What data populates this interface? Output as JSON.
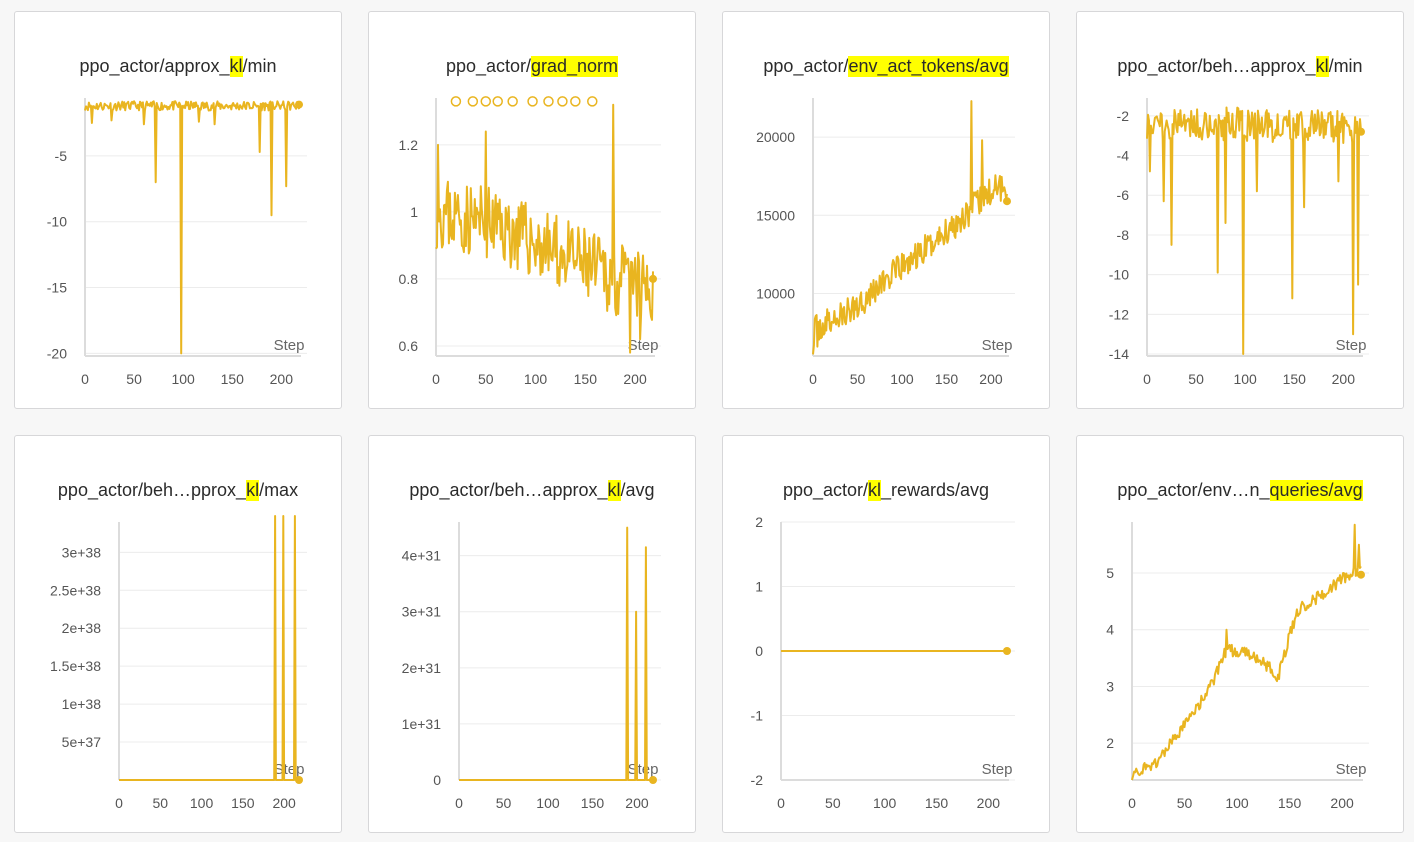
{
  "colors": {
    "series": "#e9b520",
    "grid": "#ececec",
    "axis": "#dcdcdc"
  },
  "x_axis_label": "Step",
  "chart_data": [
    {
      "type": "line",
      "title_parts": [
        {
          "text": "ppo_actor/approx_"
        },
        {
          "text": "kl",
          "hl": true
        },
        {
          "text": "/min"
        }
      ],
      "ytick_labels": [
        "-20",
        "-15",
        "-10",
        "-5"
      ],
      "yticks": [
        -20,
        -15,
        -10,
        -5
      ],
      "ylim": [
        -20.2,
        -0.6
      ],
      "xticks": [
        0,
        50,
        100,
        150,
        200
      ],
      "xlim": [
        0,
        218
      ],
      "gen": {
        "seed": 11,
        "base": [
          [
            0,
            -1.2
          ],
          [
            218,
            -1.2
          ]
        ],
        "noise": 0.7,
        "spikes": [
          [
            7,
            -2.5
          ],
          [
            27,
            -2.3
          ],
          [
            60,
            -2.6
          ],
          [
            72,
            -7
          ],
          [
            98,
            -20
          ],
          [
            116,
            -2.4
          ],
          [
            132,
            -2.6
          ],
          [
            178,
            -4.7
          ],
          [
            190,
            -9.5
          ],
          [
            205,
            -7.3
          ]
        ]
      },
      "last": [
        218,
        -1.1
      ]
    },
    {
      "type": "line",
      "title_parts": [
        {
          "text": "ppo_actor/"
        },
        {
          "text": "grad_norm",
          "hl": true
        }
      ],
      "ytick_labels": [
        "0.6",
        "0.8",
        "1",
        "1.2"
      ],
      "yticks": [
        0.6,
        0.8,
        1,
        1.2
      ],
      "ylim": [
        0.57,
        1.34
      ],
      "xticks": [
        0,
        50,
        100,
        150,
        200
      ],
      "xlim": [
        0,
        218
      ],
      "gen": {
        "seed": 23,
        "base": [
          [
            0,
            1.0
          ],
          [
            60,
            0.96
          ],
          [
            120,
            0.88
          ],
          [
            180,
            0.8
          ],
          [
            218,
            0.76
          ]
        ],
        "noise": 0.22,
        "spikes": [
          [
            2,
            1.2
          ],
          [
            50,
            1.24
          ],
          [
            178,
            1.32
          ],
          [
            195,
            0.58
          ],
          [
            205,
            0.62
          ]
        ]
      },
      "outliers_x": [
        20,
        37,
        50,
        62,
        77,
        97,
        113,
        127,
        140,
        157
      ],
      "outliers_y": 1.33,
      "last": [
        218,
        0.8
      ]
    },
    {
      "type": "line",
      "title_parts": [
        {
          "text": "ppo_actor/"
        },
        {
          "text": "env_act_tokens/avg",
          "hl": true
        }
      ],
      "ytick_labels": [
        "10000",
        "15000",
        "20000"
      ],
      "yticks": [
        10000,
        15000,
        20000
      ],
      "ylim": [
        6000,
        22500
      ],
      "xticks": [
        0,
        50,
        100,
        150,
        200
      ],
      "xlim": [
        0,
        218
      ],
      "gen": {
        "seed": 37,
        "base": [
          [
            0,
            7600
          ],
          [
            40,
            8800
          ],
          [
            80,
            10800
          ],
          [
            120,
            12500
          ],
          [
            160,
            14500
          ],
          [
            200,
            16500
          ],
          [
            218,
            17000
          ]
        ],
        "noise": 1900,
        "spikes": [
          [
            0,
            6100
          ],
          [
            5,
            6600
          ],
          [
            178,
            22300
          ],
          [
            190,
            19800
          ]
        ]
      },
      "last": [
        218,
        15900
      ]
    },
    {
      "type": "line",
      "title_parts": [
        {
          "text": "ppo_actor/beh…approx_"
        },
        {
          "text": "kl",
          "hl": true
        },
        {
          "text": "/min"
        }
      ],
      "ytick_labels": [
        "-14",
        "-12",
        "-10",
        "-8",
        "-6",
        "-4",
        "-2"
      ],
      "yticks": [
        -14,
        -12,
        -10,
        -8,
        -6,
        -4,
        -2
      ],
      "ylim": [
        -14.1,
        -1.1
      ],
      "xticks": [
        0,
        50,
        100,
        150,
        200
      ],
      "xlim": [
        0,
        218
      ],
      "gen": {
        "seed": 51,
        "base": [
          [
            0,
            -2.3
          ],
          [
            218,
            -2.6
          ]
        ],
        "noise": 1.7,
        "spikes": [
          [
            3,
            -4.8
          ],
          [
            17,
            -6.3
          ],
          [
            25,
            -8.5
          ],
          [
            72,
            -9.9
          ],
          [
            80,
            -7.4
          ],
          [
            98,
            -14
          ],
          [
            112,
            -5.8
          ],
          [
            148,
            -11.2
          ],
          [
            160,
            -6.6
          ],
          [
            195,
            -5.3
          ],
          [
            210,
            -13
          ],
          [
            215,
            -10.5
          ]
        ]
      },
      "last": [
        218,
        -2.8
      ]
    },
    {
      "type": "line",
      "title_parts": [
        {
          "text": "ppo_actor/beh…pprox_"
        },
        {
          "text": "kl",
          "hl": true
        },
        {
          "text": "/max"
        }
      ],
      "ytick_labels": [
        "5e+37",
        "1e+38",
        "1.5e+38",
        "2e+38",
        "2.5e+38",
        "3e+38"
      ],
      "yticks": [
        5e+37,
        1e+38,
        1.5e+38,
        2e+38,
        2.5e+38,
        3e+38
      ],
      "ylim": [
        0,
        3.4e+38
      ],
      "xticks": [
        0,
        50,
        100,
        150,
        200
      ],
      "xlim": [
        0,
        218
      ],
      "gen": {
        "seed": 1,
        "base": [
          [
            0,
            0
          ],
          [
            218,
            0
          ]
        ],
        "noise": 0,
        "spikes": [
          [
            189,
            4e+38
          ],
          [
            199,
            4e+38
          ],
          [
            213,
            4e+38
          ]
        ]
      },
      "last": [
        218,
        0
      ]
    },
    {
      "type": "line",
      "title_parts": [
        {
          "text": "ppo_actor/beh…approx_"
        },
        {
          "text": "kl",
          "hl": true
        },
        {
          "text": "/avg"
        }
      ],
      "ytick_labels": [
        "0",
        "1e+31",
        "2e+31",
        "3e+31",
        "4e+31"
      ],
      "yticks": [
        0,
        1e+31,
        2e+31,
        3e+31,
        4e+31
      ],
      "ylim": [
        0,
        4.6e+31
      ],
      "xticks": [
        0,
        50,
        100,
        150,
        200
      ],
      "xlim": [
        0,
        218
      ],
      "gen": {
        "seed": 2,
        "base": [
          [
            0,
            0
          ],
          [
            218,
            0
          ]
        ],
        "noise": 0,
        "spikes": [
          [
            189,
            4.5e+31
          ],
          [
            199,
            3e+31
          ],
          [
            210,
            4.15e+31
          ]
        ]
      },
      "last": [
        218,
        0
      ]
    },
    {
      "type": "line",
      "title_parts": [
        {
          "text": "ppo_actor/"
        },
        {
          "text": "kl",
          "hl": true
        },
        {
          "text": "_rewards/avg"
        }
      ],
      "ytick_labels": [
        "-2",
        "-1",
        "0",
        "1",
        "2"
      ],
      "yticks": [
        -2,
        -1,
        0,
        1,
        2
      ],
      "ylim": [
        -2,
        2
      ],
      "xticks": [
        0,
        50,
        100,
        150,
        200
      ],
      "xlim": [
        0,
        218
      ],
      "gen": {
        "seed": 3,
        "base": [
          [
            0,
            0
          ],
          [
            218,
            0
          ]
        ],
        "noise": 0,
        "spikes": []
      },
      "last": [
        218,
        0
      ]
    },
    {
      "type": "line",
      "title_parts": [
        {
          "text": "ppo_actor/env…n_"
        },
        {
          "text": "queries/avg",
          "hl": true
        }
      ],
      "ytick_labels": [
        "2",
        "3",
        "4",
        "5"
      ],
      "yticks": [
        2,
        3,
        4,
        5
      ],
      "ylim": [
        1.35,
        5.9
      ],
      "xticks": [
        0,
        50,
        100,
        150,
        200
      ],
      "xlim": [
        0,
        218
      ],
      "gen": {
        "seed": 71,
        "base": [
          [
            0,
            1.45
          ],
          [
            20,
            1.6
          ],
          [
            50,
            2.3
          ],
          [
            75,
            3.0
          ],
          [
            90,
            3.65
          ],
          [
            115,
            3.55
          ],
          [
            130,
            3.35
          ],
          [
            138,
            3.1
          ],
          [
            150,
            3.9
          ],
          [
            160,
            4.4
          ],
          [
            180,
            4.6
          ],
          [
            200,
            4.9
          ],
          [
            218,
            5.05
          ]
        ],
        "noise": 0.22,
        "spikes": [
          [
            90,
            4.0
          ],
          [
            212,
            5.85
          ],
          [
            216,
            5.5
          ]
        ]
      },
      "last": [
        218,
        4.97
      ]
    }
  ]
}
